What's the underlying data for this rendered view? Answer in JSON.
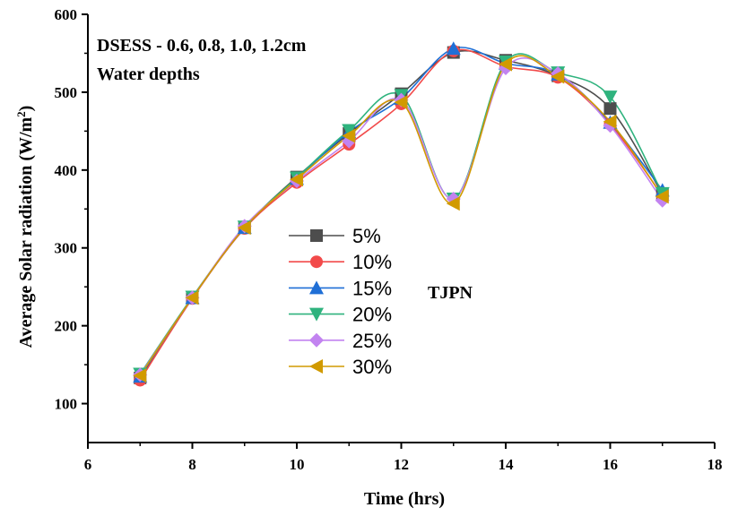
{
  "chart_data": {
    "type": "line",
    "xlabel": "Time (hrs)",
    "ylabel_main": "Average Solar radiation (W/m",
    "ylabel_sup": "2",
    "ylabel_end": ")",
    "xlim": [
      6,
      18
    ],
    "ylim": [
      50,
      600
    ],
    "xticks": [
      6,
      8,
      10,
      12,
      14,
      16,
      18
    ],
    "yticks": [
      100,
      200,
      300,
      400,
      500,
      600
    ],
    "annotations": {
      "line1": "DSESS - 0.6, 0.8, 1.0, 1.2cm",
      "line2": "Water depths",
      "tag": "TJPN"
    },
    "x": [
      7,
      8,
      9,
      10,
      11,
      12,
      13,
      14,
      15,
      16,
      17
    ],
    "series": [
      {
        "name": "5%",
        "color": "#4d4d4d",
        "marker": "square",
        "values": [
          133,
          236,
          326,
          391,
          447,
          498,
          551,
          541,
          521,
          479,
          369
        ]
      },
      {
        "name": "10%",
        "color": "#f24a4a",
        "marker": "circle",
        "values": [
          130,
          235,
          325,
          384,
          433,
          485,
          553,
          533,
          519,
          459,
          367
        ]
      },
      {
        "name": "15%",
        "color": "#1f6fd6",
        "marker": "triangle-up",
        "values": [
          135,
          236,
          326,
          389,
          449,
          492,
          556,
          537,
          523,
          461,
          374
        ]
      },
      {
        "name": "20%",
        "color": "#2fb37e",
        "marker": "triangle-down",
        "values": [
          138,
          237,
          327,
          390,
          451,
          496,
          363,
          539,
          525,
          494,
          370
        ]
      },
      {
        "name": "25%",
        "color": "#c283f0",
        "marker": "diamond",
        "values": [
          137,
          236,
          328,
          386,
          437,
          490,
          363,
          531,
          524,
          457,
          361
        ]
      },
      {
        "name": "30%",
        "color": "#d19a00",
        "marker": "triangle-left",
        "values": [
          136,
          236,
          326,
          388,
          444,
          487,
          357,
          536,
          520,
          462,
          366
        ]
      }
    ]
  }
}
